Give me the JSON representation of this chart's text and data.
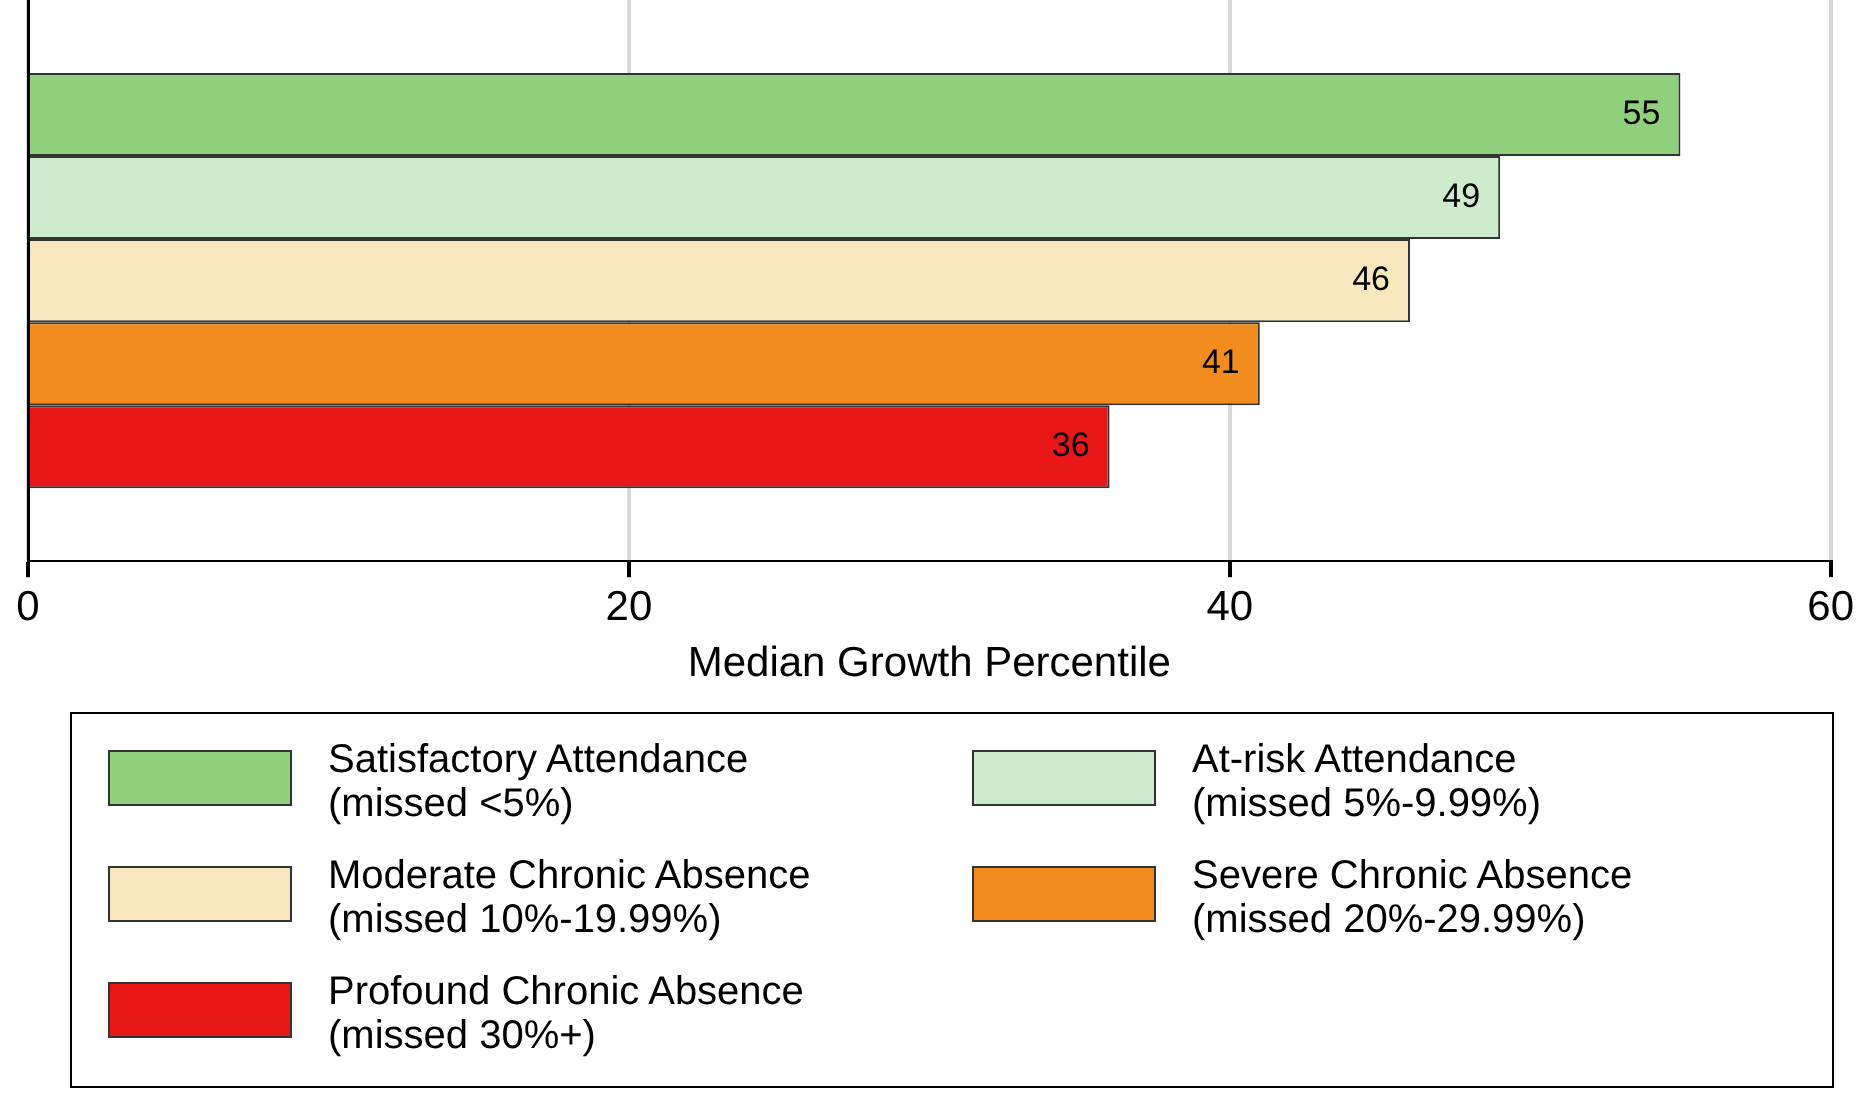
{
  "chart_data": {
    "type": "bar",
    "orientation": "horizontal",
    "xlabel": "Median Growth Percentile",
    "categories": [
      null
    ],
    "series": [
      {
        "name": "Satisfactory Attendance\n(missed <5%)",
        "color": "#90d07c",
        "values": [
          55
        ]
      },
      {
        "name": "At-risk Attendance\n(missed 5%-9.99%)",
        "color": "#cdeccb",
        "values": [
          49
        ]
      },
      {
        "name": "Moderate Chronic Absence\n(missed 10%-19.99%)",
        "color": "#f8e6bd",
        "values": [
          46
        ]
      },
      {
        "name": "Severe Chronic Absence\n(missed 20%-29.99%)",
        "color": "#f28c1e",
        "values": [
          41
        ]
      },
      {
        "name": "Profound Chronic Absence\n(missed 30%+)",
        "color": "#e81818",
        "values": [
          36
        ]
      }
    ],
    "xlim": [
      0,
      60
    ],
    "xticks": [
      0,
      20,
      40,
      60
    ],
    "grid": "x",
    "data_labels": true,
    "legend": "bottom"
  }
}
